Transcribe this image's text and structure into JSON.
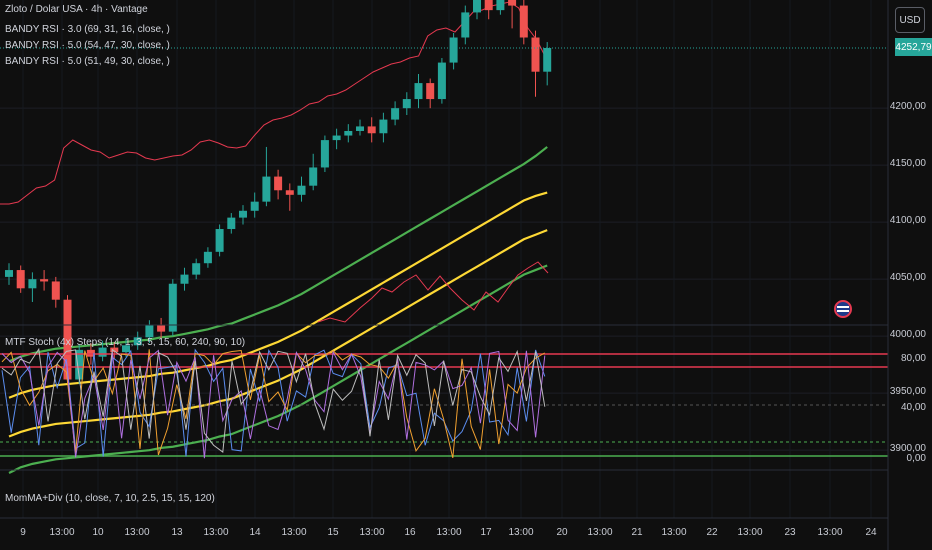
{
  "header": {
    "symbol": "Zloto / Dolar USA · 4h · Vantage",
    "indicators": [
      "BANDY RSI · 3.0 (69, 31, 16, close, )",
      "BANDY RSI · 5.0 (54, 47, 30, close, )",
      "BANDY RSI · 5.0 (51, 49, 30, close, )"
    ]
  },
  "currency_button": "USD",
  "last_price": "4252,79",
  "colors": {
    "up": "#26a69a",
    "down": "#ef5350",
    "band_green": "#4caf50",
    "band_yellow": "#fdd835",
    "rsi_red": "#e53950"
  },
  "price_axis": [
    "4200,00",
    "4150,00",
    "4100,00",
    "4050,00",
    "4000,00",
    "3950,00",
    "3900,00"
  ],
  "stoch_pane": {
    "title": "MTF Stoch (4x) Steps (14, 1, 3, 5, 15, 60, 240, 90, 10)",
    "axis": [
      "80,00",
      "40,00",
      "0,00"
    ]
  },
  "mom_pane": {
    "title": "MomMA+Div (10, close, 7, 10, 2.5, 15, 15, 120)"
  },
  "time_axis": [
    "9",
    "13:00",
    "10",
    "13:00",
    "13",
    "13:00",
    "14",
    "13:00",
    "15",
    "13:00",
    "16",
    "13:00",
    "17",
    "13:00",
    "20",
    "13:00",
    "21",
    "13:00",
    "22",
    "13:00",
    "23",
    "13:00",
    "24"
  ],
  "chart_data": {
    "type": "candlestick",
    "axes": {
      "y_price_range": [
        3870,
        4285
      ],
      "y_stoch_range": [
        0,
        100
      ]
    },
    "candles": [
      {
        "o": 4052,
        "c": 4058,
        "h": 4064,
        "l": 4045
      },
      {
        "o": 4058,
        "c": 4042,
        "h": 4062,
        "l": 4038
      },
      {
        "o": 4042,
        "c": 4050,
        "h": 4056,
        "l": 4030
      },
      {
        "o": 4050,
        "c": 4048,
        "h": 4058,
        "l": 4040
      },
      {
        "o": 4048,
        "c": 4032,
        "h": 4052,
        "l": 4025
      },
      {
        "o": 4032,
        "c": 3962,
        "h": 4036,
        "l": 3958
      },
      {
        "o": 3962,
        "c": 3988,
        "h": 3993,
        "l": 3958
      },
      {
        "o": 3988,
        "c": 3982,
        "h": 3994,
        "l": 3975
      },
      {
        "o": 3982,
        "c": 3990,
        "h": 3996,
        "l": 3978
      },
      {
        "o": 3990,
        "c": 3986,
        "h": 3995,
        "l": 3980
      },
      {
        "o": 3986,
        "c": 3992,
        "h": 3998,
        "l": 3982
      },
      {
        "o": 3992,
        "c": 3999,
        "h": 4004,
        "l": 3988
      },
      {
        "o": 3999,
        "c": 4010,
        "h": 4014,
        "l": 3994
      },
      {
        "o": 4010,
        "c": 4004,
        "h": 4016,
        "l": 3998
      },
      {
        "o": 4004,
        "c": 4046,
        "h": 4050,
        "l": 4000
      },
      {
        "o": 4046,
        "c": 4054,
        "h": 4060,
        "l": 4040
      },
      {
        "o": 4054,
        "c": 4064,
        "h": 4068,
        "l": 4050
      },
      {
        "o": 4064,
        "c": 4074,
        "h": 4078,
        "l": 4060
      },
      {
        "o": 4074,
        "c": 4094,
        "h": 4098,
        "l": 4070
      },
      {
        "o": 4094,
        "c": 4104,
        "h": 4108,
        "l": 4090
      },
      {
        "o": 4104,
        "c": 4110,
        "h": 4115,
        "l": 4098
      },
      {
        "o": 4110,
        "c": 4118,
        "h": 4126,
        "l": 4104
      },
      {
        "o": 4118,
        "c": 4140,
        "h": 4166,
        "l": 4114
      },
      {
        "o": 4140,
        "c": 4128,
        "h": 4146,
        "l": 4120
      },
      {
        "o": 4128,
        "c": 4124,
        "h": 4134,
        "l": 4110
      },
      {
        "o": 4124,
        "c": 4132,
        "h": 4140,
        "l": 4118
      },
      {
        "o": 4132,
        "c": 4148,
        "h": 4160,
        "l": 4128
      },
      {
        "o": 4148,
        "c": 4172,
        "h": 4176,
        "l": 4144
      },
      {
        "o": 4172,
        "c": 4176,
        "h": 4182,
        "l": 4164
      },
      {
        "o": 4176,
        "c": 4180,
        "h": 4186,
        "l": 4170
      },
      {
        "o": 4180,
        "c": 4184,
        "h": 4190,
        "l": 4176
      },
      {
        "o": 4184,
        "c": 4178,
        "h": 4192,
        "l": 4170
      },
      {
        "o": 4178,
        "c": 4190,
        "h": 4196,
        "l": 4170
      },
      {
        "o": 4190,
        "c": 4200,
        "h": 4206,
        "l": 4185
      },
      {
        "o": 4200,
        "c": 4208,
        "h": 4214,
        "l": 4194
      },
      {
        "o": 4208,
        "c": 4222,
        "h": 4230,
        "l": 4200
      },
      {
        "o": 4222,
        "c": 4208,
        "h": 4226,
        "l": 4200
      },
      {
        "o": 4208,
        "c": 4240,
        "h": 4244,
        "l": 4204
      },
      {
        "o": 4240,
        "c": 4262,
        "h": 4266,
        "l": 4234
      },
      {
        "o": 4262,
        "c": 4284,
        "h": 4290,
        "l": 4256
      },
      {
        "o": 4284,
        "c": 4296,
        "h": 4300,
        "l": 4278
      },
      {
        "o": 4296,
        "c": 4286,
        "h": 4300,
        "l": 4278
      },
      {
        "o": 4286,
        "c": 4296,
        "h": 4300,
        "l": 4282
      },
      {
        "o": 4296,
        "c": 4290,
        "h": 4300,
        "l": 4270
      },
      {
        "o": 4290,
        "c": 4262,
        "h": 4296,
        "l": 4256
      },
      {
        "o": 4262,
        "c": 4232,
        "h": 4268,
        "l": 4210
      },
      {
        "o": 4232,
        "c": 4252.79,
        "h": 4258,
        "l": 4220
      }
    ],
    "series": [
      {
        "name": "BANDY RSI band outer",
        "values": [
          3880,
          3885,
          3888,
          3890,
          3892,
          3893,
          3894,
          3895,
          3896,
          3897,
          3898,
          3899,
          3900,
          3902,
          3903,
          3905,
          3907,
          3909,
          3912,
          3914,
          3918,
          3922,
          3926,
          3930,
          3935,
          3940,
          3946,
          3952,
          3958,
          3964,
          3970,
          3976,
          3982,
          3988,
          3994,
          4000,
          4006,
          4012,
          4018,
          4024,
          4030,
          4036,
          4042,
          4048,
          4054,
          4058,
          4062
        ]
      },
      {
        "name": "BANDY RSI band inner",
        "values": [
          3912,
          3916,
          3919,
          3921,
          3923,
          3924,
          3925,
          3926,
          3927,
          3928,
          3929,
          3930,
          3931,
          3933,
          3934,
          3936,
          3938,
          3940,
          3943,
          3945,
          3949,
          3953,
          3957,
          3961,
          3966,
          3971,
          3977,
          3983,
          3989,
          3995,
          4001,
          4007,
          4013,
          4019,
          4025,
          4031,
          4037,
          4043,
          4049,
          4055,
          4061,
          4067,
          4073,
          4079,
          4085,
          4089,
          4093
        ]
      },
      {
        "name": "BANDY RSI band inner upper",
        "values": [
          3946,
          3950,
          3953,
          3955,
          3957,
          3958,
          3959,
          3960,
          3961,
          3962,
          3963,
          3964,
          3965,
          3967,
          3968,
          3970,
          3972,
          3974,
          3977,
          3979,
          3983,
          3987,
          3991,
          3995,
          4000,
          4005,
          4011,
          4017,
          4023,
          4029,
          4035,
          4041,
          4047,
          4053,
          4059,
          4065,
          4071,
          4077,
          4083,
          4089,
          4095,
          4101,
          4107,
          4113,
          4119,
          4123,
          4126
        ]
      },
      {
        "name": "BANDY RSI band outer upper",
        "values": [
          3978,
          3982,
          3985,
          3987,
          3989,
          3990,
          3991,
          3992,
          3993,
          3994,
          3995,
          3996,
          3997,
          3999,
          4000,
          4002,
          4004,
          4006,
          4009,
          4011,
          4015,
          4019,
          4023,
          4027,
          4032,
          4037,
          4043,
          4049,
          4055,
          4061,
          4067,
          4073,
          4079,
          4085,
          4091,
          4097,
          4103,
          4109,
          4115,
          4121,
          4127,
          4133,
          4139,
          4145,
          4151,
          4158,
          4166
        ]
      }
    ]
  }
}
